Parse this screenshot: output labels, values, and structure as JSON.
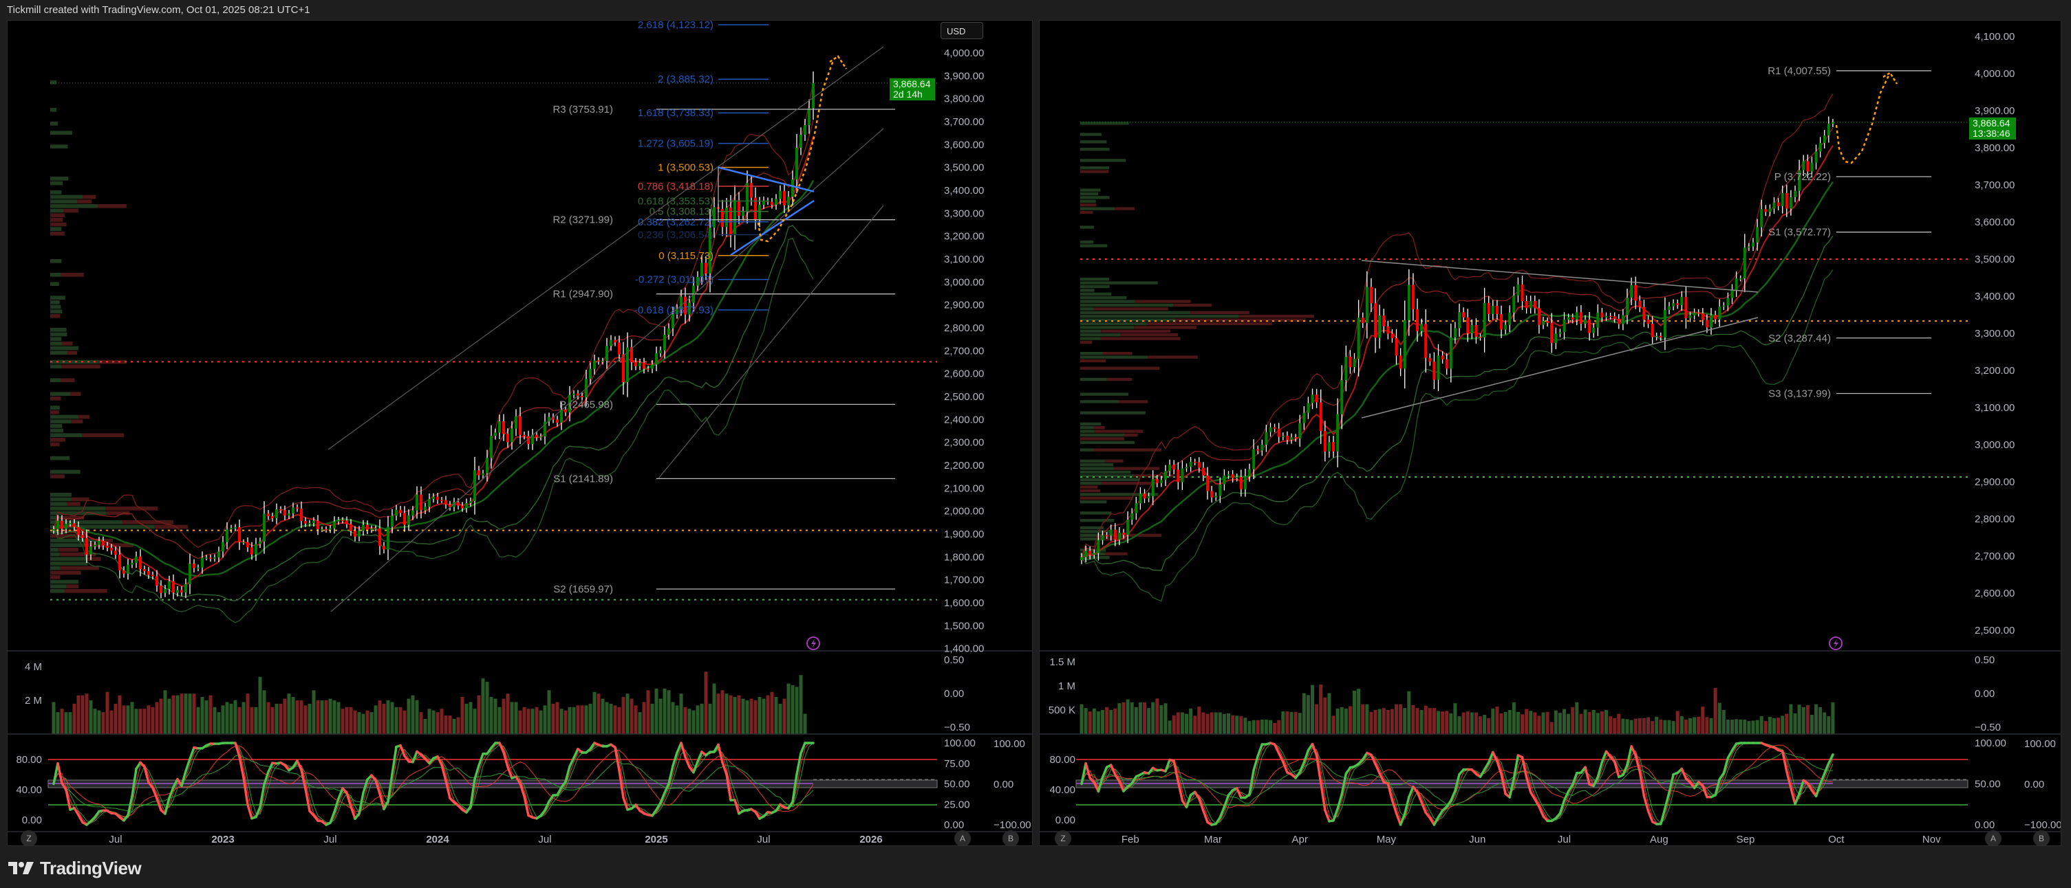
{
  "header": {
    "title": "Tickmill created with TradingView.com, Oct 01, 2025 08:21 UTC+1"
  },
  "footer": {
    "brand": "TradingView"
  },
  "colors": {
    "up": "#008000",
    "down": "#ff0000",
    "wick": "#ffffff",
    "tag": "#0a8a0a",
    "alert": "#b03cc8"
  },
  "chart_data": [
    {
      "type": "candlestick",
      "currency": "USD",
      "last_price": "3,868.64",
      "countdown": "2d 14h",
      "price_axis": {
        "range": [
          1400,
          4000
        ],
        "labels": [
          "4,000.00",
          "3,900.00",
          "3,800.00",
          "3,700.00",
          "3,600.00",
          "3,500.00",
          "3,400.00",
          "3,300.00",
          "3,200.00",
          "3,100.00",
          "3,000.00",
          "2,900.00",
          "2,800.00",
          "2,700.00",
          "2,600.00",
          "2,500.00",
          "2,400.00",
          "2,300.00",
          "2,200.00",
          "2,100.00",
          "2,000.00",
          "1,900.00",
          "1,800.00",
          "1,700.00",
          "1,600.00",
          "1,500.00",
          "1,400.00"
        ]
      },
      "x_ticks": [
        {
          "label": "Jul",
          "at": 15
        },
        {
          "label": "2023",
          "at": 41,
          "bold": true
        },
        {
          "label": "Jul",
          "at": 67
        },
        {
          "label": "2024",
          "at": 93,
          "bold": true
        },
        {
          "label": "Jul",
          "at": 119
        },
        {
          "label": "2025",
          "at": 146,
          "bold": true
        },
        {
          "label": "Jul",
          "at": 172
        },
        {
          "label": "2026",
          "at": 198,
          "bold": true
        }
      ],
      "volume_axis": [
        {
          "label": "4 M",
          "value": 4
        },
        {
          "label": "2 M",
          "value": 2
        }
      ],
      "volume_right_axis": [
        {
          "label": "0.50",
          "value": 0.5
        },
        {
          "label": "0.00",
          "value": 0
        },
        {
          "label": "−0.50",
          "value": -0.5
        }
      ],
      "osc_left_axis": [
        {
          "label": "80.00",
          "value": 80
        },
        {
          "label": "40.00",
          "value": 40
        },
        {
          "label": "0.00",
          "value": 0
        }
      ],
      "osc_axis_a": [
        {
          "label": "100.00",
          "value": 100
        },
        {
          "label": "75.00",
          "value": 75
        },
        {
          "label": "50.00",
          "value": 50
        },
        {
          "label": "25.00",
          "value": 25
        },
        {
          "label": "0.00",
          "value": 0
        }
      ],
      "osc_axis_b": [
        {
          "label": "100.00",
          "value": 100
        },
        {
          "label": "0.00",
          "value": 0
        },
        {
          "label": "−100.00",
          "value": -100
        }
      ],
      "scale_buttons": [
        "Z",
        "A",
        "B"
      ],
      "pivots": [
        {
          "label": "R3 (3753.91)",
          "value": 3753.91
        },
        {
          "label": "R2 (3271.99)",
          "value": 3271.99
        },
        {
          "label": "R1 (2947.90)",
          "value": 2947.9
        },
        {
          "label": "P (2465.98)",
          "value": 2465.98
        },
        {
          "label": "S1 (2141.89)",
          "value": 2141.89
        },
        {
          "label": "S2 (1659.97)",
          "value": 1659.97
        }
      ],
      "fibs": [
        {
          "label": "2.618 (4,123.12)",
          "value": 4123.12,
          "color": "#1f57b8"
        },
        {
          "label": "2 (3,885.32)",
          "value": 3885.32,
          "color": "#1f57b8"
        },
        {
          "label": "1.618 (3,738.33)",
          "value": 3738.33,
          "color": "#1f57b8"
        },
        {
          "label": "1.272 (3,605.19)",
          "value": 3605.19,
          "color": "#1f57b8"
        },
        {
          "label": "1 (3,500.53)",
          "value": 3500.53,
          "color": "#e59400"
        },
        {
          "label": "0.786 (3,418.18)",
          "value": 3418.18,
          "color": "#d23a3a"
        },
        {
          "label": "0.618 (3,353.53)",
          "value": 3353.53,
          "color": "#2f6d2f"
        },
        {
          "label": "0.5 (3,308.13)",
          "value": 3308.13,
          "color": "#3f6f3f"
        },
        {
          "label": "0.382 (3,262.72)",
          "value": 3262.72,
          "color": "#1f57b8"
        },
        {
          "label": "0.236 (3,206.54)",
          "value": 3206.54,
          "color": "#17305e"
        },
        {
          "label": "0 (3,115.73)",
          "value": 3115.73,
          "color": "#e59400"
        },
        {
          "label": "-0.272 (3,011.07)",
          "value": 3011.07,
          "color": "#1f57b8"
        },
        {
          "label": "-0.618 (2,877.93)",
          "value": 2877.93,
          "color": "#1f57b8"
        }
      ],
      "levels": [
        {
          "value": 2652,
          "color": "#ff3030"
        },
        {
          "value": 1916,
          "color": "#ffa000"
        },
        {
          "value": 1613,
          "color": "#4caf50"
        }
      ],
      "closes": [
        1921,
        1958,
        1923,
        1945,
        1947,
        1931,
        1896,
        1883,
        1811,
        1846,
        1853,
        1870,
        1850,
        1840,
        1827,
        1810,
        1742,
        1727,
        1766,
        1774,
        1802,
        1747,
        1738,
        1722,
        1716,
        1675,
        1643,
        1660,
        1694,
        1644,
        1656,
        1645,
        1681,
        1771,
        1751,
        1754,
        1797,
        1797,
        1793,
        1798,
        1824,
        1865,
        1920,
        1926,
        1929,
        1865,
        1865,
        1842,
        1811,
        1856,
        1868,
        1989,
        1978,
        1969,
        2008,
        2004,
        1981,
        1990,
        2016,
        2011,
        1957,
        1946,
        1948,
        1958,
        1921,
        1921,
        1919,
        1925,
        1955,
        1961,
        1959,
        1943,
        1914,
        1889,
        1914,
        1940,
        1919,
        1924,
        1925,
        1848,
        1833,
        1932,
        1980,
        2006,
        1992,
        1940,
        1981,
        2003,
        2072,
        2004,
        2019,
        2053,
        2063,
        2049,
        2048,
        2029,
        2018,
        2039,
        2024,
        2013,
        2035,
        2044,
        2178,
        2156,
        2165,
        2232,
        2329,
        2343,
        2392,
        2337,
        2301,
        2360,
        2414,
        2333,
        2327,
        2293,
        2333,
        2322,
        2326,
        2391,
        2411,
        2400,
        2386,
        2443,
        2431,
        2507,
        2513,
        2503,
        2497,
        2577,
        2621,
        2658,
        2653,
        2656,
        2721,
        2747,
        2736,
        2684,
        2563,
        2715,
        2650,
        2633,
        2648,
        2622,
        2621,
        2640,
        2689,
        2702,
        2770,
        2798,
        2860,
        2883,
        2936,
        2858,
        2910,
        2984,
        3022,
        3084,
        3037,
        3237,
        3327,
        3319,
        3240,
        3325,
        3205,
        3357,
        3289,
        3310,
        3432,
        3368,
        3274,
        3337,
        3355,
        3350,
        3337,
        3363,
        3398,
        3335,
        3372,
        3448,
        3586,
        3643,
        3685,
        3759,
        3868.64
      ],
      "volumes_m": [
        1.9,
        1.3,
        1.5,
        1.3,
        1.3,
        1.8,
        2.3,
        2.3,
        2.4,
        2.0,
        1.5,
        1.4,
        1.3,
        2.5,
        1.4,
        1.8,
        2.3,
        1.7,
        1.7,
        1.9,
        1.5,
        1.5,
        1.5,
        1.7,
        1.6,
        1.9,
        2.1,
        2.6,
        2.1,
        2.3,
        2.3,
        2.4,
        2.4,
        2.4,
        2.4,
        1.6,
        2.2,
        2.0,
        2.3,
        1.6,
        1.3,
        1.7,
        1.9,
        1.8,
        2.0,
        1.6,
        1.9,
        2.4,
        1.6,
        1.6,
        3.4,
        2.6,
        1.9,
        1.6,
        1.8,
        1.8,
        2.1,
        2.4,
        2.2,
        2.0,
        2.0,
        1.7,
        1.8,
        2.6,
        2.0,
        2.0,
        2.0,
        2.1,
        2.0,
        1.9,
        1.5,
        1.6,
        1.6,
        1.4,
        1.3,
        1.2,
        1.4,
        1.3,
        1.7,
        2.0,
        1.8,
        2.0,
        1.9,
        1.6,
        1.6,
        1.4,
        2.1,
        2.3,
        2.0,
        1.3,
        0.9,
        1.5,
        1.4,
        1.3,
        1.5,
        1.1,
        1.1,
        0.9,
        1.0,
        2.2,
        1.8,
        1.9,
        1.5,
        2.3,
        3.3,
        3.1,
        2.2,
        2.1,
        1.6,
        2.1,
        2.4,
        1.9,
        1.9,
        1.4,
        1.6,
        1.5,
        1.5,
        1.6,
        1.4,
        1.7,
        2.6,
        1.8,
        1.9,
        1.5,
        1.4,
        1.6,
        1.6,
        1.7,
        1.7,
        1.7,
        1.8,
        2.5,
        2.4,
        2.1,
        1.9,
        1.8,
        1.7,
        1.6,
        2.2,
        2.4,
        2.1,
        1.7,
        1.3,
        1.9,
        2.6,
        1.8,
        2.7,
        2.1,
        2.7,
        2.6,
        1.9,
        1.7,
        2.4,
        1.6,
        1.5,
        1.4,
        1.7,
        1.8,
        3.7,
        1.8,
        3.0,
        2.4,
        2.6,
        2.4,
        2.3,
        2.2,
        2.3,
        2.1,
        2.0,
        2.1,
        2.0,
        2.2,
        2.1,
        2.3,
        2.5,
        2.2,
        1.8,
        2.1,
        3.0,
        2.9,
        2.8,
        3.5,
        1.2
      ]
    },
    {
      "type": "candlestick",
      "last_price": "3,868.64",
      "countdown": "13:38:46",
      "price_axis": {
        "range": [
          2500,
          4100
        ],
        "labels": [
          "4,100.00",
          "4,000.00",
          "3,900.00",
          "3,800.00",
          "3,700.00",
          "3,600.00",
          "3,500.00",
          "3,400.00",
          "3,300.00",
          "3,200.00",
          "3,100.00",
          "3,000.00",
          "2,900.00",
          "2,800.00",
          "2,700.00",
          "2,600.00",
          "2,500.00"
        ]
      },
      "x_ticks": [
        {
          "label": "Feb",
          "at": 11.6
        },
        {
          "label": "Mar",
          "at": 31.3
        },
        {
          "label": "Apr",
          "at": 52
        },
        {
          "label": "May",
          "at": 72.6
        },
        {
          "label": "Jun",
          "at": 94.3
        },
        {
          "label": "Jul",
          "at": 115
        },
        {
          "label": "Aug",
          "at": 137.6
        },
        {
          "label": "Sep",
          "at": 158.2
        },
        {
          "label": "Oct",
          "at": 179.8
        },
        {
          "label": "Nov",
          "at": 202.5
        }
      ],
      "volume_axis": [
        {
          "label": "1.5 M",
          "value": 1500
        },
        {
          "label": "1 M",
          "value": 1000
        },
        {
          "label": "500 K",
          "value": 500
        }
      ],
      "volume_right_axis": [
        {
          "label": "0.50",
          "value": 0.5
        },
        {
          "label": "0.00",
          "value": 0
        },
        {
          "label": "−0.50",
          "value": -0.5
        }
      ],
      "osc_left_axis": [
        {
          "label": "80.00",
          "value": 80
        },
        {
          "label": "40.00",
          "value": 40
        },
        {
          "label": "0.00",
          "value": 0
        }
      ],
      "osc_axis_a": [
        {
          "label": "100.00",
          "value": 100
        },
        {
          "label": "50.00",
          "value": 50
        },
        {
          "label": "0.00",
          "value": 0
        }
      ],
      "osc_axis_b": [
        {
          "label": "100.00",
          "value": 100
        },
        {
          "label": "0.00",
          "value": 0
        },
        {
          "label": "−100.00",
          "value": -100
        }
      ],
      "scale_buttons": [
        "Z",
        "A",
        "B"
      ],
      "pivots": [
        {
          "label": "R1 (4,007.55)",
          "value": 4007.55
        },
        {
          "label": "P (3,722.22)",
          "value": 3722.22
        },
        {
          "label": "S1 (3,572.77)",
          "value": 3572.77
        },
        {
          "label": "S2 (3,287.44)",
          "value": 3287.44
        },
        {
          "label": "S3 (3,137.99)",
          "value": 3137.99
        }
      ],
      "levels": [
        {
          "value": 3500,
          "color": "#ff3030"
        },
        {
          "value": 3333,
          "color": "#ffa000"
        },
        {
          "value": 2913,
          "color": "#4caf50"
        }
      ],
      "closes": [
        2697,
        2714,
        2703,
        2708,
        2743,
        2756,
        2755,
        2771,
        2744,
        2763,
        2757,
        2798,
        2815,
        2842,
        2868,
        2855,
        2861,
        2907,
        2897,
        2905,
        2929,
        2946,
        2933,
        2899,
        2936,
        2940,
        2954,
        2953,
        2938,
        2917,
        2875,
        2858,
        2862,
        2893,
        2917,
        2920,
        2910,
        2913,
        2880,
        2915,
        2934,
        2988,
        2984,
        3000,
        3034,
        3047,
        3043,
        3021,
        3024,
        3013,
        3020,
        3017,
        3058,
        3086,
        3112,
        3135,
        3114,
        3037,
        2982,
        3007,
        2982,
        3082,
        3174,
        3237,
        3209,
        3231,
        3343,
        3328,
        3425,
        3381,
        3288,
        3348,
        3319,
        3299,
        3287,
        3240,
        3205,
        3335,
        3431,
        3365,
        3306,
        3325,
        3234,
        3224,
        3175,
        3240,
        3230,
        3205,
        3289,
        3314,
        3357,
        3343,
        3300,
        3322,
        3291,
        3289,
        3382,
        3352,
        3374,
        3352,
        3310,
        3323,
        3356,
        3402,
        3432,
        3387,
        3368,
        3387,
        3368,
        3323,
        3333,
        3328,
        3274,
        3299,
        3303,
        3337,
        3343,
        3337,
        3357,
        3326,
        3337,
        3301,
        3315,
        3356,
        3343,
        3347,
        3346,
        3339,
        3325,
        3349,
        3396,
        3430,
        3388,
        3371,
        3337,
        3326,
        3290,
        3293,
        3289,
        3363,
        3373,
        3381,
        3376,
        3398,
        3341,
        3348,
        3356,
        3354,
        3336,
        3316,
        3349,
        3338,
        3372,
        3375,
        3395,
        3417,
        3448,
        3448,
        3531,
        3534,
        3545,
        3586,
        3635,
        3627,
        3636,
        3653,
        3643,
        3678,
        3636,
        3667,
        3684,
        3740,
        3764,
        3736,
        3760,
        3790,
        3813,
        3833,
        3865,
        3868.64
      ],
      "volumes_k": [
        620,
        540,
        470,
        530,
        470,
        500,
        560,
        500,
        530,
        640,
        660,
        720,
        660,
        560,
        660,
        660,
        540,
        660,
        740,
        600,
        640,
        280,
        390,
        450,
        450,
        420,
        530,
        380,
        570,
        450,
        420,
        450,
        450,
        450,
        420,
        430,
        390,
        380,
        370,
        340,
        270,
        290,
        290,
        300,
        300,
        290,
        230,
        290,
        470,
        470,
        460,
        460,
        440,
        850,
        810,
        1020,
        620,
        1030,
        760,
        850,
        380,
        530,
        560,
        530,
        580,
        900,
        940,
        620,
        620,
        460,
        500,
        520,
        540,
        500,
        520,
        620,
        620,
        540,
        890,
        600,
        540,
        500,
        590,
        540,
        540,
        480,
        470,
        480,
        430,
        640,
        370,
        450,
        470,
        450,
        450,
        370,
        400,
        330,
        530,
        570,
        430,
        460,
        500,
        660,
        460,
        410,
        520,
        480,
        450,
        380,
        450,
        460,
        250,
        490,
        440,
        520,
        420,
        560,
        660,
        420,
        510,
        460,
        500,
        440,
        470,
        500,
        370,
        330,
        420,
        320,
        310,
        290,
        320,
        330,
        330,
        350,
        270,
        360,
        300,
        290,
        290,
        270,
        480,
        370,
        300,
        330,
        350,
        360,
        570,
        350,
        330,
        960,
        650,
        500,
        300,
        300,
        310,
        300,
        300,
        270,
        280,
        290,
        370,
        270,
        360,
        330,
        340,
        380,
        420,
        620,
        430,
        610,
        560,
        600,
        400,
        620,
        560,
        450,
        370,
        660,
        750,
        490,
        970,
        1250,
        560,
        660,
        620,
        180
      ]
    }
  ]
}
